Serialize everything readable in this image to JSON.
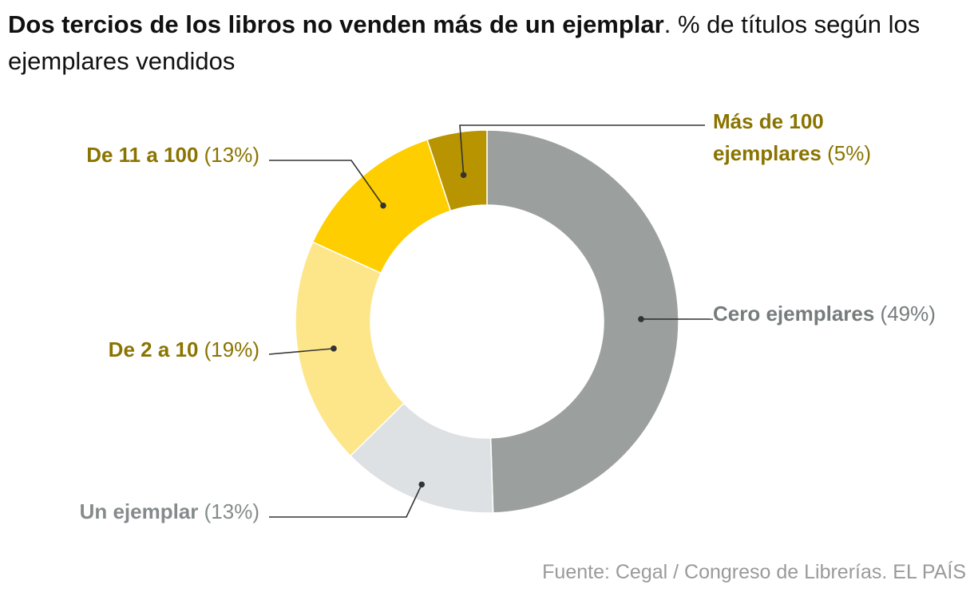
{
  "header": {
    "title_bold": "Dos tercios de los libros no venden más de un ejemplar",
    "title_sep": ".",
    "subtitle": " % de títulos según los ejemplares vendidos"
  },
  "chart_data": {
    "type": "pie",
    "donut": true,
    "slices": [
      {
        "label": "Cero ejemplares",
        "label_lines": [
          "Cero ejemplares"
        ],
        "value": 49,
        "value_label": "(49%)",
        "color": "#9ba09f",
        "label_color": "#767c7c"
      },
      {
        "label": "Un ejemplar",
        "label_lines": [
          "Un ejemplar"
        ],
        "value": 13,
        "value_label": "(13%)",
        "color": "#dde1e4",
        "label_color": "#858b8c"
      },
      {
        "label": "De 2 a 10",
        "label_lines": [
          "De 2 a 10"
        ],
        "value": 19,
        "value_label": "(19%)",
        "color": "#fde68a",
        "label_color": "#8a7400"
      },
      {
        "label": "De 11 a 100",
        "label_lines": [
          "De 11 a 100"
        ],
        "value": 13,
        "value_label": "(13%)",
        "color": "#fece00",
        "label_color": "#8a7400"
      },
      {
        "label": "Más de 100 ejemplares",
        "label_lines": [
          "Más de 100",
          "ejemplares"
        ],
        "value": 5,
        "value_label": "(5%)",
        "color": "#b89400",
        "label_color": "#8a7400"
      }
    ]
  },
  "source": "Fuente: Cegal / Congreso de Librerías. EL PAÍS"
}
